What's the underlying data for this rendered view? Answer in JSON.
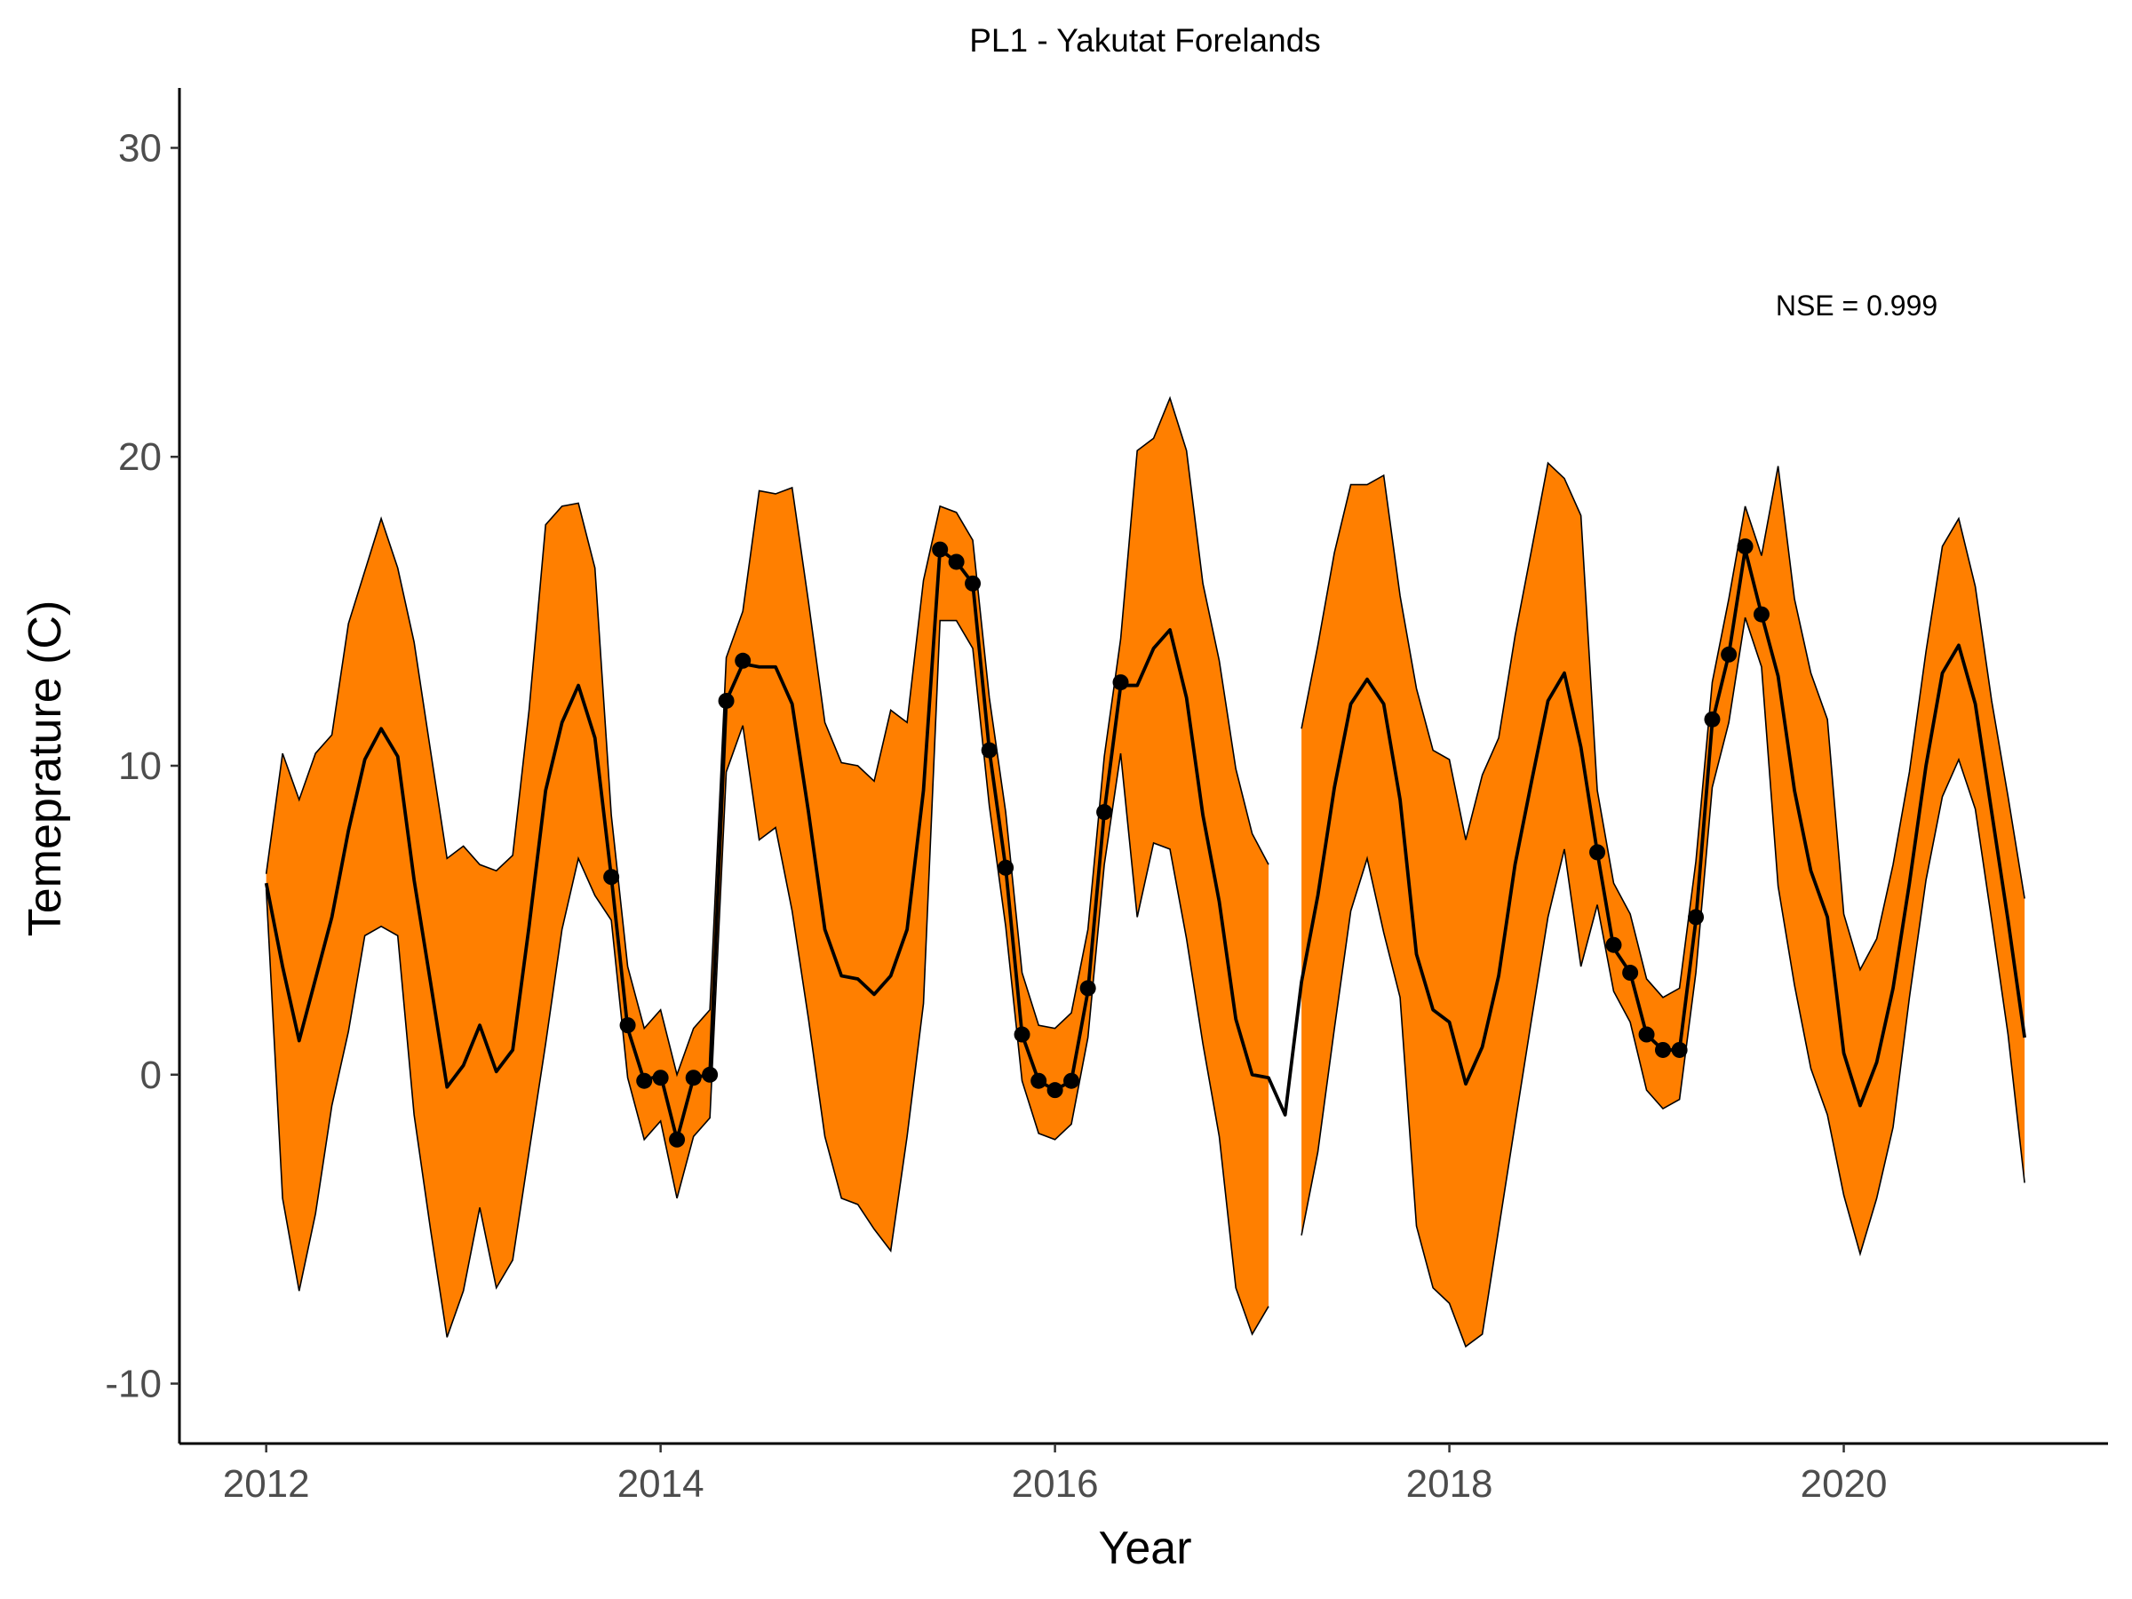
{
  "chart_data": {
    "type": "line",
    "title": "PL1 - Yakutat Forelands",
    "x_label": "Year",
    "y_label": "Temeprature (C)",
    "annotation": "NSE = 0.999",
    "xlim": [
      2011.56,
      2021.34
    ],
    "ylim": [
      -11.94,
      31.94
    ],
    "xticks": [
      2012,
      2014,
      2016,
      2018,
      2020
    ],
    "yticks": [
      -10,
      0,
      10,
      20,
      30
    ],
    "grid": false,
    "x": [
      2012,
      2012.083,
      2012.167,
      2012.25,
      2012.333,
      2012.417,
      2012.5,
      2012.583,
      2012.667,
      2012.75,
      2012.833,
      2012.917,
      2013,
      2013.083,
      2013.167,
      2013.25,
      2013.333,
      2013.417,
      2013.5,
      2013.583,
      2013.667,
      2013.75,
      2013.833,
      2013.917,
      2014,
      2014.083,
      2014.167,
      2014.25,
      2014.333,
      2014.417,
      2014.5,
      2014.583,
      2014.667,
      2014.75,
      2014.833,
      2014.917,
      2015,
      2015.083,
      2015.167,
      2015.25,
      2015.333,
      2015.417,
      2015.5,
      2015.583,
      2015.667,
      2015.75,
      2015.833,
      2015.917,
      2016,
      2016.083,
      2016.167,
      2016.25,
      2016.333,
      2016.417,
      2016.5,
      2016.583,
      2016.667,
      2016.75,
      2016.833,
      2016.917,
      2017,
      2017.083,
      2017.167,
      2017.25,
      2017.333,
      2017.417,
      2017.5,
      2017.583,
      2017.667,
      2017.75,
      2017.833,
      2017.917,
      2018,
      2018.083,
      2018.167,
      2018.25,
      2018.333,
      2018.417,
      2018.5,
      2018.583,
      2018.667,
      2018.75,
      2018.833,
      2018.917,
      2019,
      2019.083,
      2019.167,
      2019.25,
      2019.333,
      2019.417,
      2019.5,
      2019.583,
      2019.667,
      2019.75,
      2019.833,
      2019.917,
      2020,
      2020.083,
      2020.167,
      2020.25,
      2020.333,
      2020.417,
      2020.5,
      2020.583,
      2020.667,
      2020.75,
      2020.833,
      2020.917
    ],
    "band": {
      "color": "#ff7f00",
      "upper": [
        6.5,
        10.4,
        8.9,
        10.4,
        11,
        14.6,
        16.3,
        18,
        16.4,
        14,
        10.5,
        7,
        7.4,
        6.8,
        6.6,
        7.1,
        11.8,
        17.8,
        18.4,
        18.5,
        16.4,
        8.4,
        3.5,
        1.5,
        2.1,
        0,
        1.5,
        2.1,
        13.5,
        15,
        18.9,
        18.8,
        19,
        15.3,
        11.4,
        10.1,
        10,
        9.5,
        11.8,
        11.4,
        16,
        18.4,
        18.2,
        17.3,
        12.2,
        8.5,
        3.3,
        1.6,
        1.5,
        2,
        4.7,
        10.3,
        14.1,
        20.2,
        20.6,
        21.9,
        20.2,
        15.9,
        13.4,
        9.9,
        7.8,
        6.8,
        null,
        11.2,
        13.9,
        16.9,
        19.1,
        19.1,
        19.4,
        15.5,
        12.5,
        10.5,
        10.2,
        7.6,
        9.7,
        10.9,
        14.2,
        17,
        19.8,
        19.3,
        18.1,
        9.2,
        6.2,
        5.2,
        3.1,
        2.5,
        2.8,
        6.9,
        12.7,
        15.4,
        18.4,
        16.8,
        19.7,
        15.4,
        13,
        11.5,
        5.2,
        3.4,
        4.4,
        6.8,
        9.8,
        13.7,
        17.1,
        18,
        15.8,
        12.1,
        9,
        5.7
      ],
      "lower": [
        6,
        -4,
        -7,
        -4.5,
        -1,
        1.4,
        4.5,
        4.8,
        4.5,
        -1.3,
        -5,
        -8.5,
        -7,
        -4.3,
        -6.9,
        -6,
        -2.5,
        1,
        4.7,
        7,
        5.8,
        5,
        -0.1,
        -2.1,
        -1.5,
        -4,
        -2,
        -1.4,
        9.8,
        11.3,
        7.6,
        8,
        5.3,
        1.8,
        -2,
        -4,
        -4.2,
        -5,
        -5.7,
        -2,
        2.3,
        14.7,
        14.7,
        13.8,
        8.7,
        4.8,
        -0.2,
        -1.9,
        -2.1,
        -1.6,
        1.2,
        6.8,
        10.4,
        5.1,
        7.5,
        7.3,
        4.4,
        1,
        -2,
        -6.9,
        -8.4,
        -7.5,
        null,
        -5.2,
        -2.5,
        1.5,
        5.3,
        7,
        4.6,
        2.5,
        -4.9,
        -6.9,
        -7.4,
        -8.8,
        -8.4,
        -5,
        -1.6,
        1.8,
        5.1,
        7.3,
        3.5,
        5.5,
        2.7,
        1.7,
        -0.5,
        -1.1,
        -0.8,
        3.3,
        9.3,
        11.4,
        14.8,
        13.2,
        6.1,
        2.9,
        0.2,
        -1.3,
        -3.9,
        -5.8,
        -4,
        -1.7,
        2.5,
        6.3,
        9,
        10.2,
        8.6,
        5,
        1.3,
        -3.5
      ]
    },
    "series": [
      {
        "color": "#000000",
        "markers": false,
        "values": [
          6.2,
          3.5,
          1.1,
          3.1,
          5.1,
          7.9,
          10.2,
          11.2,
          10.3,
          6.3,
          3,
          -0.4,
          0.3,
          1.6,
          0.1,
          0.8,
          4.8,
          9.2,
          11.4,
          12.6,
          10.9,
          6.4,
          1.5,
          -0.2,
          0,
          -2.1,
          -0.1,
          0,
          12.1,
          13.3,
          13.2,
          13.2,
          12,
          8.5,
          4.7,
          3.2,
          3.1,
          2.6,
          3.2,
          4.7,
          9.2,
          17,
          16.6,
          15.9,
          10.5,
          6.7,
          1.3,
          -0.2,
          -0.5,
          -0.2,
          2.7,
          8.5,
          12.6,
          12.6,
          13.8,
          14.4,
          12.2,
          8.4,
          5.6,
          1.8,
          0,
          -0.1,
          -1.3,
          3,
          5.8,
          9.3,
          12,
          12.8,
          12,
          8.9,
          3.9,
          2.1,
          1.7,
          -0.3,
          0.9,
          3.2,
          6.8,
          9.5,
          12.1,
          13,
          10.6,
          7.2,
          4.1,
          3.3,
          1.3,
          0.8,
          0.8,
          5,
          11.4,
          13.6,
          17,
          14.9,
          12.9,
          9.2,
          6.6,
          5.1,
          0.7,
          -1,
          0.4,
          2.8,
          6.2,
          10,
          13,
          13.9,
          12,
          8.5,
          5,
          1.2
        ]
      },
      {
        "color": "#000000",
        "markers": true,
        "values": [
          null,
          null,
          null,
          null,
          null,
          null,
          null,
          null,
          null,
          null,
          null,
          null,
          null,
          null,
          null,
          null,
          null,
          null,
          null,
          null,
          null,
          6.4,
          1.6,
          -0.2,
          -0.1,
          -2.1,
          -0.1,
          0,
          12.1,
          13.4,
          null,
          null,
          null,
          null,
          null,
          null,
          null,
          null,
          null,
          null,
          null,
          17,
          16.6,
          15.9,
          10.5,
          6.7,
          1.3,
          -0.2,
          -0.5,
          -0.2,
          2.8,
          8.5,
          12.7,
          null,
          null,
          null,
          null,
          null,
          null,
          null,
          null,
          null,
          null,
          null,
          null,
          null,
          null,
          null,
          null,
          null,
          null,
          null,
          null,
          null,
          null,
          null,
          null,
          null,
          null,
          null,
          null,
          7.2,
          4.2,
          3.3,
          1.3,
          0.8,
          0.8,
          5.1,
          11.5,
          13.6,
          17.1,
          14.9,
          null,
          null,
          null,
          null,
          null,
          null,
          null,
          null,
          null,
          null,
          null,
          null,
          null,
          null,
          null,
          null
        ]
      }
    ]
  }
}
